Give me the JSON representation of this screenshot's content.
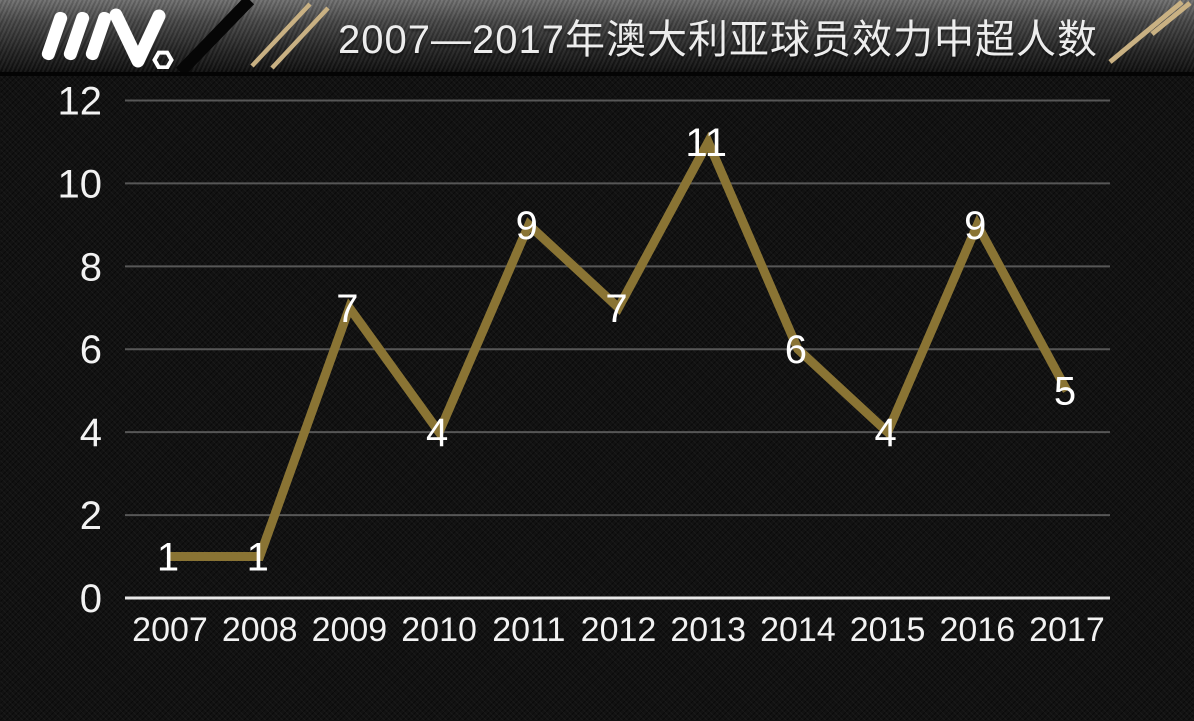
{
  "header": {
    "title": "2007—2017年澳大利亚球员效力中超人数"
  },
  "chart_data": {
    "type": "line",
    "title": "2007—2017年澳大利亚球员效力中超人数",
    "x": [
      "2007",
      "2008",
      "2009",
      "2010",
      "2011",
      "2012",
      "2013",
      "2014",
      "2015",
      "2016",
      "2017"
    ],
    "values": [
      1,
      1,
      7,
      4,
      9,
      7,
      11,
      6,
      4,
      9,
      5
    ],
    "xlabel": "",
    "ylabel": "",
    "ylim": [
      0,
      12
    ],
    "yticks": [
      0,
      2,
      4,
      6,
      8,
      10,
      12
    ],
    "grid": true,
    "legend": "none",
    "colors": {
      "line": "#8a7434",
      "grid": "#575757",
      "axis": "#e8e8e8",
      "tick_label": "#f2f2f2",
      "point_label": "#ffffff",
      "accent": "#c9b183",
      "background": "#121212"
    }
  }
}
